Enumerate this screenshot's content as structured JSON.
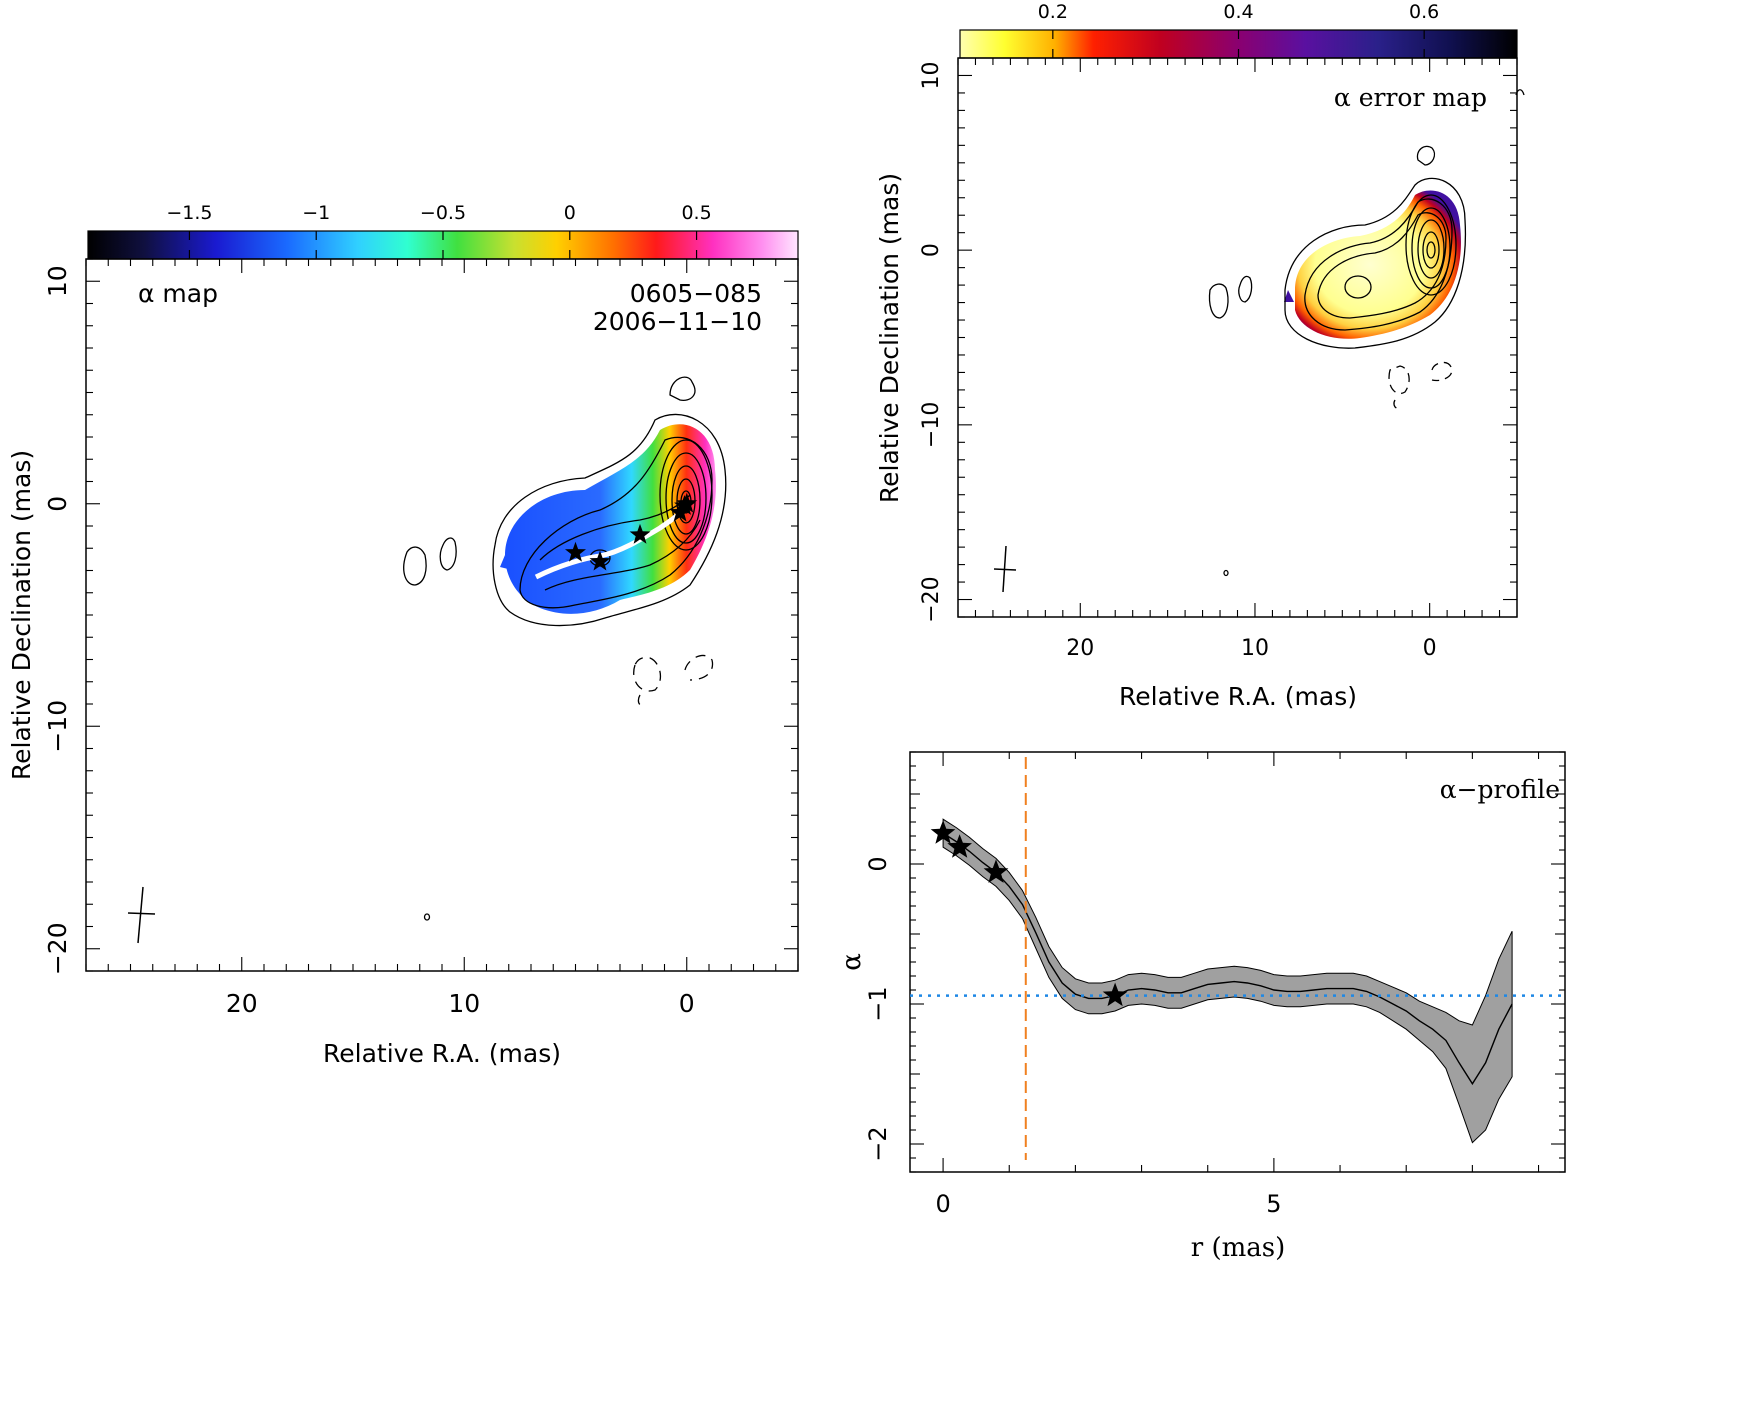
{
  "chart_data": [
    {
      "panel": "alpha-map",
      "type": "heatmap",
      "label": "α map",
      "source": "0605−085",
      "date": "2006−11−10",
      "xlabel": "Relative R.A. (mas)",
      "ylabel": "Relative Declination (mas)",
      "xlim": [
        27,
        -5
      ],
      "ylim": [
        -21,
        11
      ],
      "xticks": [
        20,
        10,
        0
      ],
      "yticks": [
        10,
        0,
        -10,
        -20
      ],
      "colorbar": {
        "colormap": "rainbow-dark-to-pink",
        "range": [
          -1.9,
          0.9
        ],
        "ticks": [
          -1.5,
          -1,
          -0.5,
          0,
          0.5
        ],
        "tick_labels": [
          "−1.5",
          "−1",
          "−0.5",
          "0",
          "0.5"
        ]
      },
      "ridge_line_color": "#ffffff",
      "stars_xy": [
        [
          5.0,
          -2.2
        ],
        [
          3.9,
          -2.6
        ],
        [
          2.1,
          -1.4
        ],
        [
          0.3,
          -0.4
        ],
        [
          0.1,
          -0.1
        ],
        [
          0.0,
          0.0
        ]
      ],
      "beam": {
        "x": 24.5,
        "y": -18.5
      }
    },
    {
      "panel": "alpha-error-map",
      "type": "heatmap",
      "label": "α error map",
      "xlabel": "Relative R.A. (mas)",
      "ylabel": "Relative Declination (mas)",
      "xlim": [
        27,
        -5
      ],
      "ylim": [
        -21,
        11
      ],
      "xticks": [
        20,
        10,
        0
      ],
      "yticks": [
        10,
        0,
        -10,
        -20
      ],
      "colorbar": {
        "colormap": "yellow-red-purple-black",
        "range": [
          0.1,
          0.7
        ],
        "ticks": [
          0.2,
          0.4,
          0.6
        ],
        "tick_labels": [
          "0.2",
          "0.4",
          "0.6"
        ]
      },
      "beam": {
        "x": 24.5,
        "y": -18.5
      }
    },
    {
      "panel": "alpha-profile",
      "type": "line",
      "label": "α−profile",
      "xlabel": "r (mas)",
      "ylabel": "α",
      "xlim": [
        -0.5,
        9.4
      ],
      "ylim": [
        -2.2,
        0.8
      ],
      "xticks": [
        0,
        5
      ],
      "yticks": [
        0,
        -1,
        -2
      ],
      "x": [
        0.0,
        0.2,
        0.4,
        0.6,
        0.8,
        1.0,
        1.2,
        1.4,
        1.6,
        1.8,
        2.0,
        2.2,
        2.4,
        2.6,
        2.8,
        3.0,
        3.2,
        3.4,
        3.6,
        3.8,
        4.0,
        4.2,
        4.4,
        4.6,
        4.8,
        5.0,
        5.2,
        5.4,
        5.6,
        5.8,
        6.0,
        6.2,
        6.4,
        6.6,
        6.8,
        7.0,
        7.2,
        7.4,
        7.6,
        7.8,
        8.0,
        8.2,
        8.4,
        8.6
      ],
      "y": [
        0.22,
        0.16,
        0.09,
        0.01,
        -0.06,
        -0.16,
        -0.29,
        -0.49,
        -0.7,
        -0.85,
        -0.93,
        -0.96,
        -0.96,
        -0.94,
        -0.9,
        -0.89,
        -0.9,
        -0.92,
        -0.92,
        -0.89,
        -0.86,
        -0.85,
        -0.84,
        -0.85,
        -0.87,
        -0.9,
        -0.91,
        -0.91,
        -0.9,
        -0.89,
        -0.89,
        -0.89,
        -0.91,
        -0.95,
        -1.0,
        -1.05,
        -1.12,
        -1.18,
        -1.26,
        -1.42,
        -1.57,
        -1.42,
        -1.18,
        -1.0
      ],
      "band_halfwidth": [
        0.1,
        0.1,
        0.1,
        0.1,
        0.1,
        0.1,
        0.1,
        0.11,
        0.11,
        0.11,
        0.11,
        0.11,
        0.11,
        0.11,
        0.11,
        0.11,
        0.11,
        0.11,
        0.11,
        0.11,
        0.11,
        0.11,
        0.11,
        0.11,
        0.11,
        0.11,
        0.11,
        0.11,
        0.11,
        0.11,
        0.11,
        0.11,
        0.11,
        0.11,
        0.12,
        0.13,
        0.14,
        0.16,
        0.2,
        0.3,
        0.42,
        0.48,
        0.5,
        0.52
      ],
      "stars": {
        "x": [
          0.0,
          0.25,
          0.8,
          2.6
        ],
        "y": [
          0.22,
          0.12,
          -0.06,
          -0.94
        ]
      },
      "hline": {
        "y": -0.94,
        "color": "#1e88e5",
        "style": "dotted"
      },
      "vline": {
        "x": 1.25,
        "color": "#f08020",
        "style": "dashed"
      },
      "band_color": "#a0a0a0"
    }
  ]
}
